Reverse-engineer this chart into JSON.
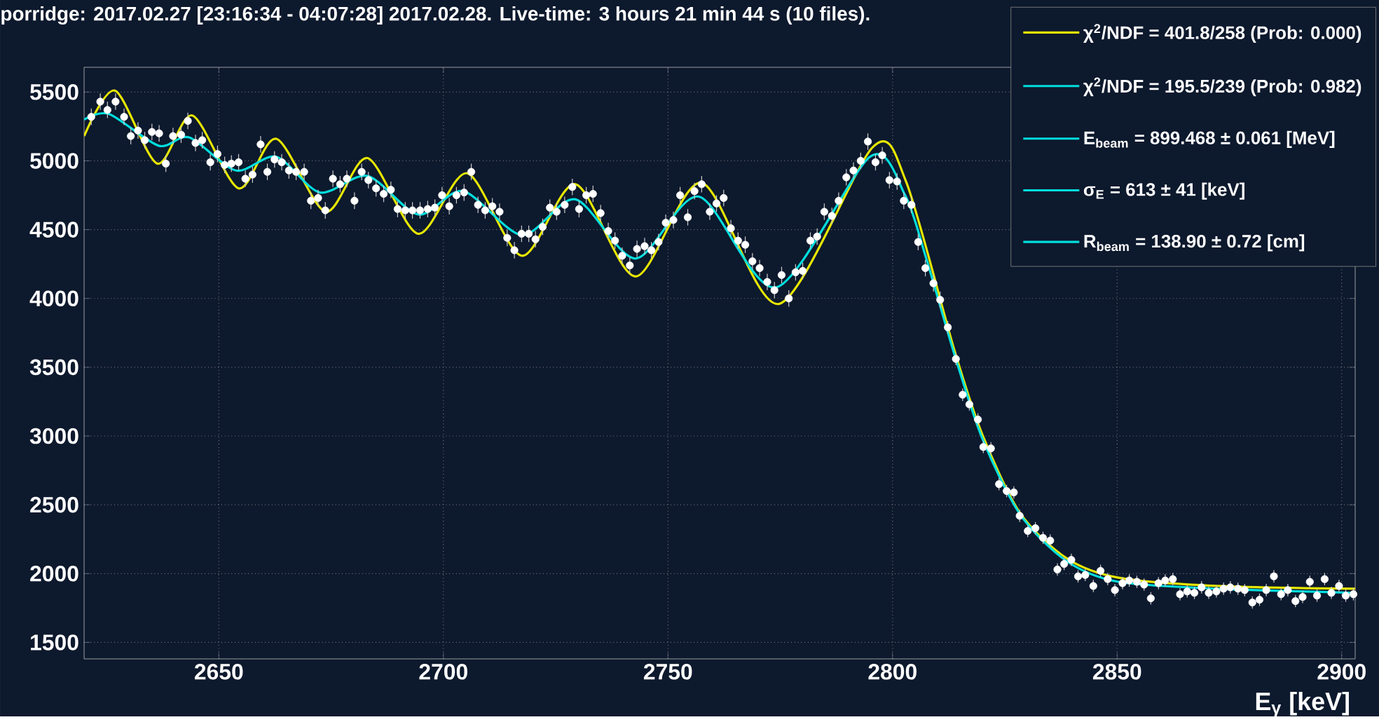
{
  "chart_data": {
    "type": "scatter",
    "title": "porridge: 2017.02.27 [23:16:34 - 04:07:28] 2017.02.28. Live-time: 3 hours 21 min 44 s (10 files).",
    "xlabel": "E$_{γ}$ [keV]",
    "xlim": [
      2620,
      2903
    ],
    "ylim": [
      1380,
      5680
    ],
    "xticks": [
      2650,
      2700,
      2750,
      2800,
      2850,
      2900
    ],
    "yticks": [
      1500,
      2000,
      2500,
      3000,
      3500,
      4000,
      4500,
      5000,
      5500
    ],
    "grid": true,
    "legend": "top right",
    "annotations": [
      "E$_{beam}$ =  899.468 ± 0.061 [MeV]",
      "σ$_{E}$ =    613 ±   41 [keV]",
      "R$_{beam}$ = 138.90 ±  0.72 [cm]"
    ],
    "series": [
      {
        "color": "#ffffff",
        "x": [
          2621.6,
          2623.6,
          2625.2,
          2627.0,
          2628.9,
          2630.4,
          2632.0,
          2633.5,
          2635.1,
          2636.7,
          2638.2,
          2639.8,
          2641.6,
          2643.1,
          2644.8,
          2646.3,
          2648.1,
          2649.7,
          2651.3,
          2652.8,
          2654.4,
          2655.9,
          2657.5,
          2659.3,
          2660.8,
          2662.4,
          2664.0,
          2665.6,
          2667.2,
          2669.0,
          2670.5,
          2672.1,
          2673.7,
          2675.4,
          2677.0,
          2678.5,
          2680.2,
          2681.8,
          2683.3,
          2685.0,
          2686.7,
          2688.3,
          2689.8,
          2691.5,
          2693.1,
          2694.8,
          2696.5,
          2698.1,
          2699.7,
          2701.3,
          2702.9,
          2704.6,
          2706.2,
          2707.7,
          2709.3,
          2710.9,
          2712.5,
          2714.2,
          2715.8,
          2717.4,
          2719.0,
          2720.5,
          2722.1,
          2723.7,
          2725.2,
          2727.0,
          2728.7,
          2730.2,
          2731.8,
          2733.3,
          2735.0,
          2736.7,
          2738.2,
          2739.8,
          2741.5,
          2743.1,
          2744.8,
          2746.3,
          2747.9,
          2749.5,
          2751.2,
          2752.7,
          2754.4,
          2755.9,
          2757.5,
          2759.3,
          2760.8,
          2762.4,
          2764.0,
          2765.6,
          2767.2,
          2768.8,
          2770.4,
          2772.1,
          2773.7,
          2775.3,
          2776.9,
          2778.4,
          2780.0,
          2781.7,
          2783.2,
          2784.8,
          2786.5,
          2788.0,
          2789.7,
          2791.3,
          2792.9,
          2794.5,
          2796.2,
          2797.7,
          2799.3,
          2801.0,
          2802.5,
          2804.2,
          2805.7,
          2807.3,
          2809.1,
          2810.6,
          2812.3,
          2814.1,
          2815.6,
          2817.1,
          2819.0,
          2820.2,
          2821.9,
          2823.7,
          2825.4,
          2827.0,
          2828.3,
          2830.1,
          2831.8,
          2833.5,
          2835.1,
          2836.7,
          2838.2,
          2839.8,
          2841.3,
          2842.9,
          2844.7,
          2846.3,
          2847.9,
          2849.5,
          2851.2,
          2852.7,
          2854.4,
          2856.0,
          2857.5,
          2859.2,
          2860.7,
          2862.4,
          2864.0,
          2865.6,
          2867.2,
          2868.8,
          2870.4,
          2872.1,
          2873.7,
          2875.2,
          2876.9,
          2878.4,
          2880.1,
          2881.7,
          2883.2,
          2884.9,
          2886.5,
          2888.0,
          2889.7,
          2891.3,
          2892.9,
          2894.5,
          2896.2,
          2897.7,
          2899.4,
          2900.9,
          2902.6
        ],
        "values": [
          5320,
          5430,
          5370,
          5430,
          5320,
          5180,
          5220,
          5150,
          5210,
          5200,
          4980,
          5180,
          5190,
          5290,
          5130,
          5150,
          4990,
          5050,
          4970,
          4980,
          4990,
          4870,
          4900,
          5120,
          4920,
          5010,
          4990,
          4930,
          4920,
          4920,
          4710,
          4730,
          4640,
          4870,
          4830,
          4870,
          4710,
          4920,
          4860,
          4800,
          4760,
          4790,
          4650,
          4640,
          4640,
          4640,
          4650,
          4660,
          4750,
          4670,
          4750,
          4770,
          4920,
          4680,
          4640,
          4670,
          4630,
          4440,
          4350,
          4470,
          4470,
          4430,
          4520,
          4660,
          4630,
          4680,
          4810,
          4650,
          4750,
          4760,
          4620,
          4490,
          4420,
          4310,
          4240,
          4360,
          4380,
          4350,
          4410,
          4550,
          4570,
          4750,
          4590,
          4780,
          4830,
          4630,
          4690,
          4730,
          4510,
          4420,
          4390,
          4270,
          4220,
          4120,
          4060,
          4170,
          4000,
          4190,
          4200,
          4420,
          4450,
          4630,
          4600,
          4710,
          4880,
          4930,
          5000,
          5140,
          4990,
          5040,
          4860,
          4850,
          4710,
          4680,
          4410,
          4220,
          4110,
          3990,
          3790,
          3560,
          3300,
          3230,
          3120,
          2920,
          2910,
          2650,
          2600,
          2590,
          2420,
          2310,
          2330,
          2260,
          2240,
          2030,
          2070,
          2100,
          1980,
          1990,
          1910,
          2020,
          1960,
          1880,
          1930,
          1950,
          1940,
          1920,
          1820,
          1930,
          1950,
          1960,
          1850,
          1870,
          1860,
          1900,
          1860,
          1870,
          1890,
          1900,
          1890,
          1880,
          1790,
          1810,
          1880,
          1980,
          1850,
          1880,
          1800,
          1830,
          1940,
          1840,
          1960,
          1860,
          1910,
          1840,
          1850
        ],
        "errors": [
          60,
          60,
          60,
          60,
          60,
          60,
          60,
          60,
          60,
          60,
          60,
          60,
          60,
          60,
          60,
          60,
          60,
          60,
          60,
          60,
          60,
          60,
          60,
          60,
          60,
          60,
          60,
          60,
          60,
          60,
          60,
          60,
          60,
          60,
          60,
          60,
          60,
          60,
          60,
          60,
          60,
          60,
          60,
          60,
          60,
          60,
          60,
          60,
          60,
          60,
          60,
          60,
          60,
          60,
          60,
          60,
          60,
          60,
          60,
          60,
          60,
          60,
          60,
          60,
          60,
          60,
          60,
          60,
          60,
          60,
          60,
          60,
          60,
          60,
          60,
          60,
          60,
          60,
          60,
          60,
          60,
          60,
          60,
          60,
          60,
          60,
          60,
          60,
          60,
          60,
          60,
          60,
          60,
          60,
          60,
          60,
          60,
          60,
          60,
          60,
          60,
          60,
          60,
          60,
          60,
          60,
          60,
          60,
          60,
          60,
          60,
          60,
          60,
          60,
          60,
          60,
          60,
          60,
          45,
          45,
          45,
          45,
          45,
          45,
          45,
          45,
          45,
          45,
          45,
          45,
          45,
          45,
          45,
          45,
          45,
          45,
          45,
          45,
          45,
          45,
          45,
          45,
          45,
          45,
          45,
          45,
          45,
          45,
          45,
          45,
          45,
          45,
          45,
          45,
          45,
          45,
          45,
          45,
          45,
          45,
          45,
          45,
          45,
          45,
          45,
          45,
          45,
          45,
          45,
          45,
          45,
          45,
          45,
          45,
          45
        ]
      },
      {
        "type": "line",
        "name": "χ$^{2}$/NDF = 401.8/258  (Prob: 0.000)",
        "color": "#e6e600",
        "x": [
          2620,
          2626.9,
          2636.3,
          2644.1,
          2654.4,
          2662.8,
          2673.8,
          2683.1,
          2694.4,
          2705.3,
          2717.5,
          2729.4,
          2742.8,
          2757.5,
          2774.7,
          2795.6,
          2803,
          2813.8,
          2820,
          2828.4,
          2838.8,
          2850.3,
          2872.2,
          2903
        ],
        "values": [
          5180,
          5510,
          4980,
          5330,
          4800,
          5160,
          4630,
          5020,
          4470,
          4910,
          4310,
          4830,
          4160,
          4840,
          3960,
          5100,
          4850,
          3620,
          3010,
          2440,
          2110,
          1970,
          1910,
          1890
        ]
      },
      {
        "type": "line",
        "name": "χ$^{2}$/NDF = 195.5/239  (Prob: 0.982)",
        "color": "#00dede",
        "x": [
          2620,
          2625.6,
          2636.6,
          2643.4,
          2653.8,
          2662.8,
          2672.5,
          2683.1,
          2694.4,
          2704.4,
          2717.5,
          2729.4,
          2742.8,
          2756.9,
          2774.1,
          2795,
          2802.8,
          2807.5,
          2813.8,
          2820,
          2828.4,
          2838.8,
          2850.3,
          2872.2,
          2903
        ],
        "values": [
          5300,
          5340,
          5110,
          5170,
          4930,
          5030,
          4770,
          4890,
          4610,
          4780,
          4460,
          4720,
          4290,
          4740,
          4080,
          5030,
          4750,
          4290,
          3590,
          2980,
          2430,
          2090,
          1940,
          1890,
          1860
        ]
      }
    ]
  }
}
